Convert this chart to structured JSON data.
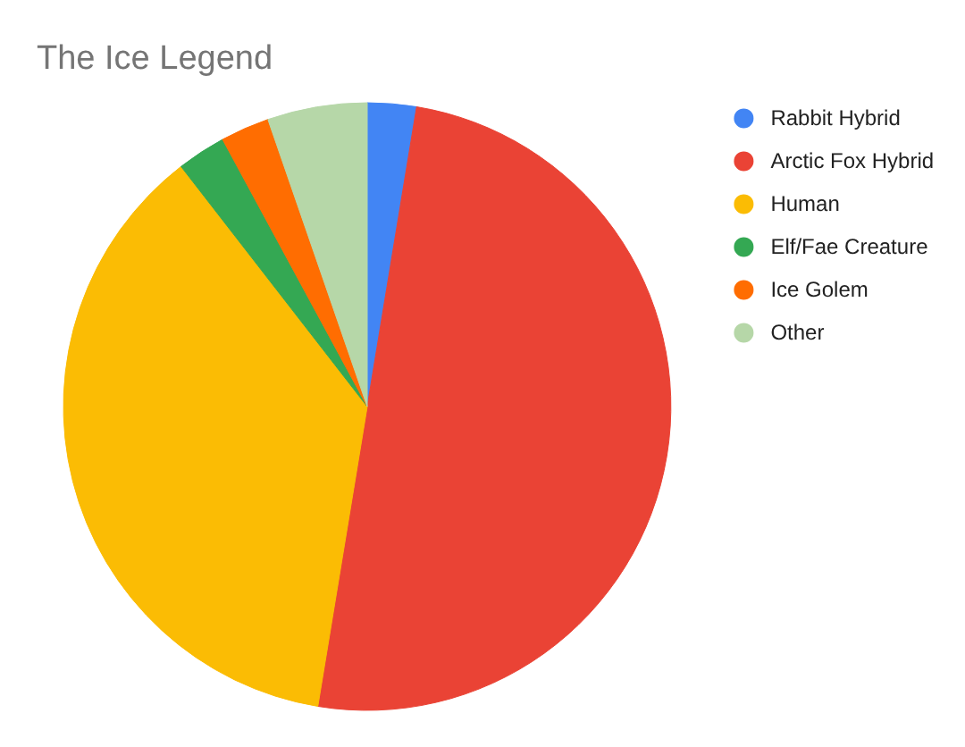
{
  "chart_data": {
    "type": "pie",
    "title": "The Ice Legend",
    "categories": [
      "Rabbit Hybrid",
      "Arctic Fox Hybrid",
      "Human",
      "Elf/Fae Creature",
      "Ice Golem",
      "Other"
    ],
    "values": [
      2.6,
      50,
      36.9,
      2.6,
      2.6,
      5.3
    ],
    "colors": [
      "#4285f4",
      "#ea4335",
      "#fbbc04",
      "#34a853",
      "#ff6d01",
      "#b6d7a8"
    ],
    "legend": "right"
  }
}
